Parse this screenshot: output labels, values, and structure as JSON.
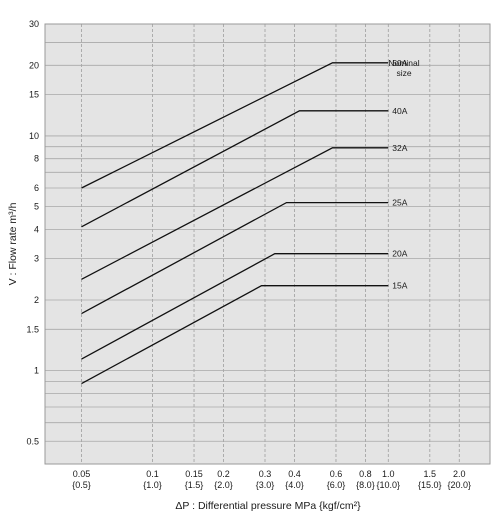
{
  "chart_data": {
    "type": "line",
    "xlabel": "ΔP : Differential pressure  MPa {kgf/cm²}",
    "ylabel": "V : Flow rate  m³/h",
    "x_scale": "log",
    "y_scale": "log",
    "xlim": [
      0.035,
      2.7
    ],
    "ylim": [
      0.4,
      30
    ],
    "grid": true,
    "background": "#e4e4e4",
    "line_color": "#111111",
    "x_ticks": [
      {
        "value": 0.05,
        "label": "0.05",
        "sublabel": "{0.5}"
      },
      {
        "value": 0.1,
        "label": "0.1",
        "sublabel": "{1.0}"
      },
      {
        "value": 0.15,
        "label": "0.15",
        "sublabel": "{1.5}"
      },
      {
        "value": 0.2,
        "label": "0.2",
        "sublabel": "{2.0}"
      },
      {
        "value": 0.3,
        "label": "0.3",
        "sublabel": "{3.0}"
      },
      {
        "value": 0.4,
        "label": "0.4",
        "sublabel": "{4.0}"
      },
      {
        "value": 0.6,
        "label": "0.6",
        "sublabel": "{6.0}"
      },
      {
        "value": 0.8,
        "label": "0.8",
        "sublabel": "{8.0}"
      },
      {
        "value": 1.0,
        "label": "1.0",
        "sublabel": "{10.0}"
      },
      {
        "value": 1.5,
        "label": "1.5",
        "sublabel": "{15.0}"
      },
      {
        "value": 2.0,
        "label": "2.0",
        "sublabel": "{20.0}"
      }
    ],
    "y_ticks": [
      {
        "value": 0.5,
        "label": "0.5"
      },
      {
        "value": 1,
        "label": "1"
      },
      {
        "value": 1.5,
        "label": "1.5"
      },
      {
        "value": 2,
        "label": "2"
      },
      {
        "value": 3,
        "label": "3"
      },
      {
        "value": 4,
        "label": "4"
      },
      {
        "value": 5,
        "label": "5"
      },
      {
        "value": 6,
        "label": "6"
      },
      {
        "value": 8,
        "label": "8"
      },
      {
        "value": 10,
        "label": "10"
      },
      {
        "value": 15,
        "label": "15"
      },
      {
        "value": 20,
        "label": "20"
      },
      {
        "value": 30,
        "label": "30"
      }
    ],
    "x_grid": [
      0.05,
      0.1,
      0.15,
      0.2,
      0.3,
      0.4,
      0.6,
      0.8,
      1.0,
      1.5,
      2.0
    ],
    "y_grid": [
      0.5,
      0.6,
      0.7,
      0.8,
      0.9,
      1,
      1.5,
      2,
      3,
      4,
      5,
      6,
      7,
      8,
      9,
      10,
      15,
      20,
      25,
      30
    ],
    "legend_title": [
      "Nominal",
      "size"
    ],
    "series": [
      {
        "name": "50A",
        "points": [
          [
            0.05,
            6.0
          ],
          [
            0.58,
            20.5
          ],
          [
            1.0,
            20.5
          ]
        ]
      },
      {
        "name": "40A",
        "points": [
          [
            0.05,
            4.1
          ],
          [
            0.42,
            12.8
          ],
          [
            1.0,
            12.8
          ]
        ]
      },
      {
        "name": "32A",
        "points": [
          [
            0.05,
            2.45
          ],
          [
            0.58,
            8.9
          ],
          [
            1.0,
            8.9
          ]
        ]
      },
      {
        "name": "25A",
        "points": [
          [
            0.05,
            1.75
          ],
          [
            0.37,
            5.2
          ],
          [
            1.0,
            5.2
          ]
        ]
      },
      {
        "name": "20A",
        "points": [
          [
            0.05,
            1.12
          ],
          [
            0.33,
            3.15
          ],
          [
            1.0,
            3.15
          ]
        ]
      },
      {
        "name": "15A",
        "points": [
          [
            0.05,
            0.88
          ],
          [
            0.29,
            2.3
          ],
          [
            1.0,
            2.3
          ]
        ]
      }
    ]
  }
}
